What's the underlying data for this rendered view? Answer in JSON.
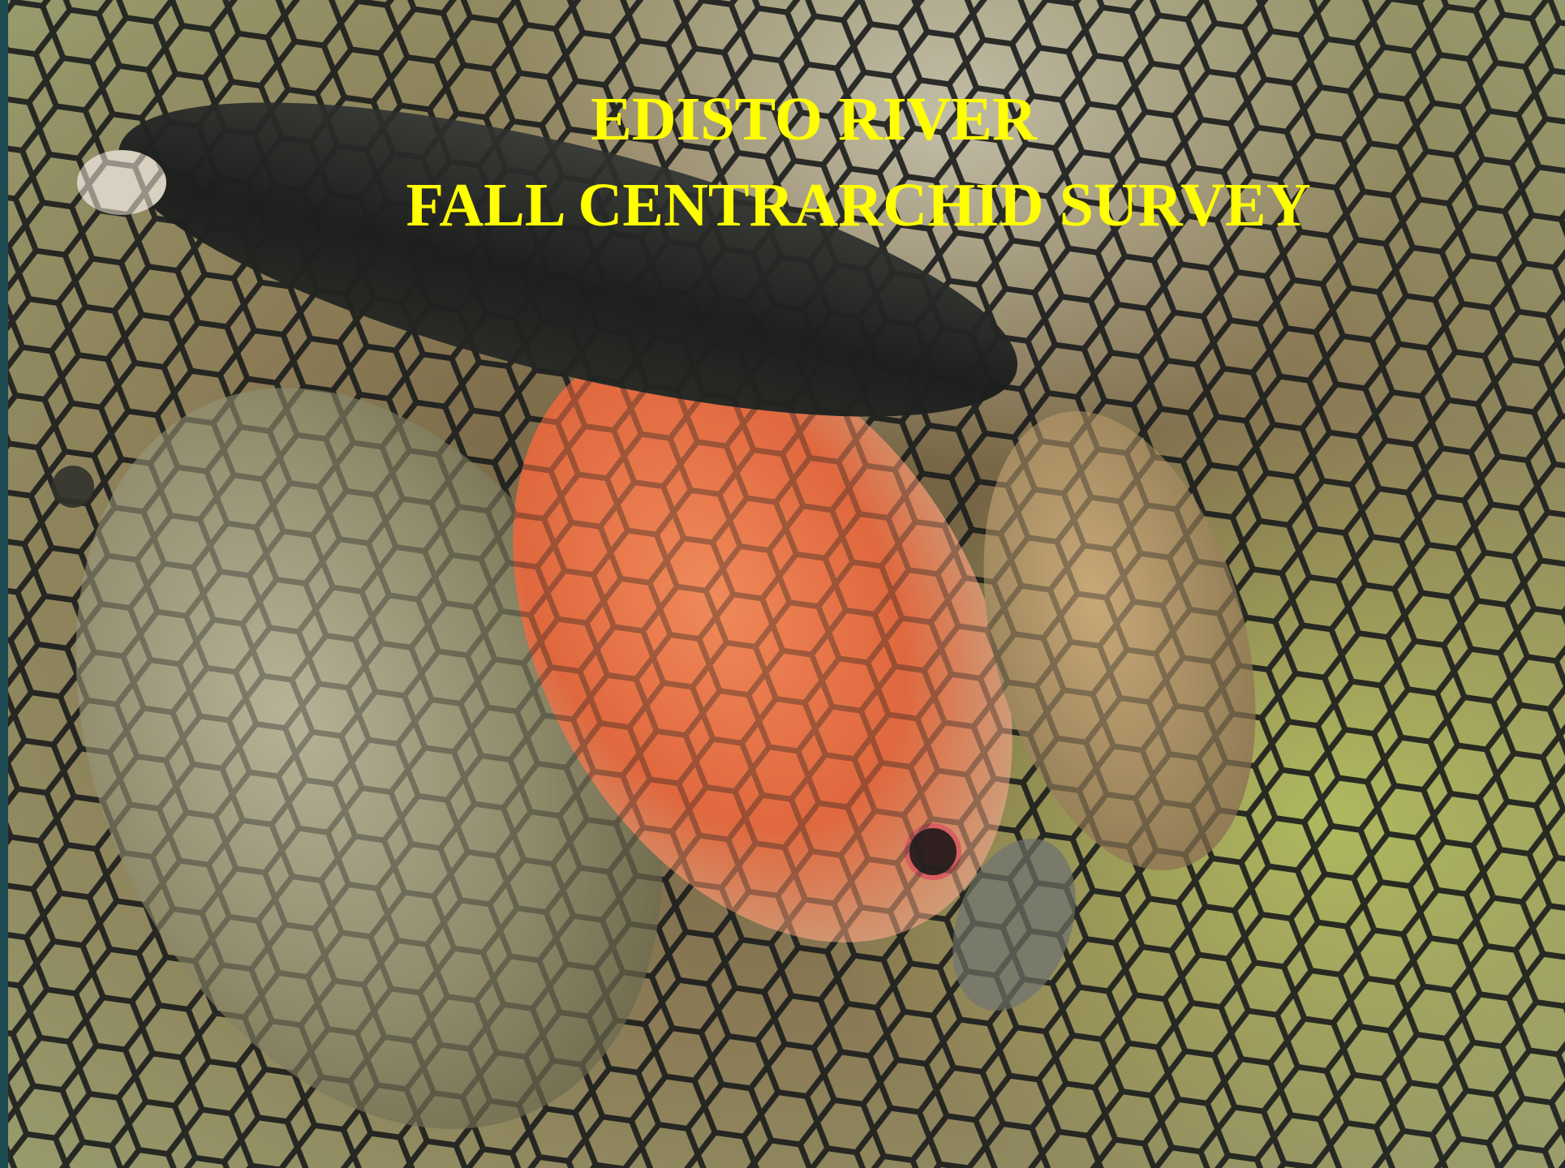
{
  "title": {
    "line1": "EDISTO RIVER",
    "line2": "FALL CENTRARCHID SURVEY"
  }
}
